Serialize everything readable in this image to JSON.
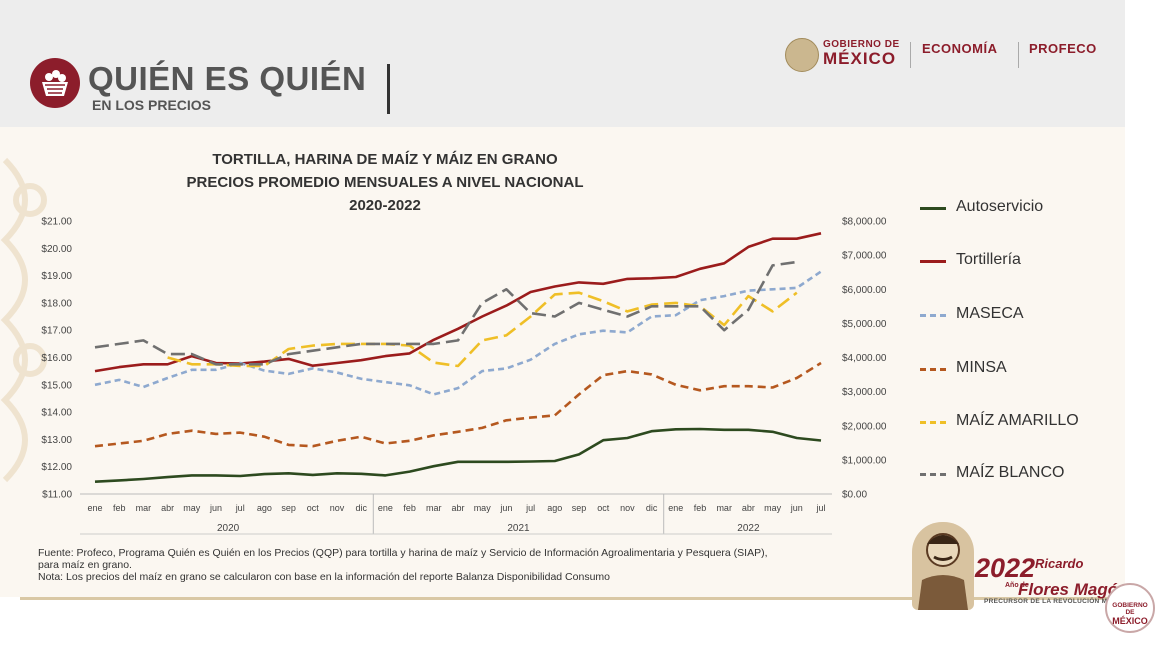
{
  "header": {
    "brand_title": "QUIÉN ES QUIÉN",
    "brand_subtitle": "EN LOS PRECIOS",
    "gov_line1": "GOBIERNO DE",
    "gov_line2": "MÉXICO",
    "ministry": "ECONOMÍA",
    "agency": "PROFECO"
  },
  "chart_data": {
    "type": "line",
    "title": [
      "TORTILLA, HARINA DE MAÍZ Y MÁIZ EN GRANO",
      "PRECIOS PROMEDIO MENSUALES A NIVEL NACIONAL",
      "2020-2022"
    ],
    "categories": [
      "ene",
      "feb",
      "mar",
      "abr",
      "may",
      "jun",
      "jul",
      "ago",
      "sep",
      "oct",
      "nov",
      "dic",
      "ene",
      "feb",
      "mar",
      "abr",
      "may",
      "jun",
      "jul",
      "ago",
      "sep",
      "oct",
      "nov",
      "dic",
      "ene",
      "feb",
      "mar",
      "abr",
      "may",
      "jun",
      "jul"
    ],
    "year_groups": [
      {
        "label": "2020",
        "months": 12
      },
      {
        "label": "2021",
        "months": 12
      },
      {
        "label": "2022",
        "months": 7
      }
    ],
    "y_left": {
      "min": 11,
      "max": 21,
      "step": 1,
      "ticks": [
        "$11.00",
        "$12.00",
        "$13.00",
        "$14.00",
        "$15.00",
        "$16.00",
        "$17.00",
        "$18.00",
        "$19.00",
        "$20.00",
        "$21.00"
      ]
    },
    "y_right": {
      "min": 0,
      "max": 8000,
      "step": 1000,
      "ticks": [
        "$0.00",
        "$1,000.00",
        "$2,000.00",
        "$3,000.00",
        "$4,000.00",
        "$5,000.00",
        "$6,000.00",
        "$7,000.00",
        "$8,000.00"
      ]
    },
    "series": [
      {
        "name": "Autoservicio",
        "axis": "left",
        "color": "#2d4a1f",
        "dash": "",
        "values": [
          11.45,
          11.5,
          11.55,
          11.62,
          11.68,
          11.68,
          11.66,
          11.73,
          11.76,
          11.7,
          11.76,
          11.74,
          11.68,
          11.82,
          12.02,
          12.18,
          12.18,
          12.18,
          12.19,
          12.21,
          12.45,
          12.97,
          13.05,
          13.3,
          13.37,
          13.38,
          13.35,
          13.35,
          13.28,
          13.05,
          12.96
        ]
      },
      {
        "name": "Tortillería",
        "axis": "left",
        "color": "#9b1c1c",
        "dash": "",
        "values": [
          15.5,
          15.65,
          15.75,
          15.75,
          16.05,
          15.8,
          15.78,
          15.85,
          15.95,
          15.7,
          15.8,
          15.9,
          16.05,
          16.15,
          16.65,
          17.05,
          17.5,
          17.9,
          18.4,
          18.6,
          18.75,
          18.7,
          18.88,
          18.9,
          18.95,
          19.25,
          19.45,
          20.05,
          20.35,
          20.35,
          20.55
        ]
      },
      {
        "name": "MASECA",
        "axis": "left",
        "color": "#8ea9cf",
        "dash": "6,4",
        "values": [
          15.0,
          15.18,
          14.92,
          15.25,
          15.55,
          15.55,
          15.8,
          15.52,
          15.4,
          15.6,
          15.45,
          15.22,
          15.1,
          14.98,
          14.65,
          14.88,
          15.5,
          15.6,
          15.92,
          16.5,
          16.85,
          16.98,
          16.92,
          17.5,
          17.55,
          18.1,
          18.25,
          18.45,
          18.5,
          18.55,
          19.15
        ]
      },
      {
        "name": "MINSA",
        "axis": "left",
        "color": "#b5581f",
        "dash": "8,5",
        "values": [
          12.75,
          12.85,
          12.95,
          13.2,
          13.32,
          13.2,
          13.25,
          13.1,
          12.8,
          12.75,
          12.95,
          13.1,
          12.85,
          12.95,
          13.15,
          13.28,
          13.42,
          13.7,
          13.8,
          13.88,
          14.65,
          15.35,
          15.5,
          15.38,
          15.0,
          14.8,
          14.95,
          14.95,
          14.9,
          15.25,
          15.8
        ]
      },
      {
        "name": "MAÍZ AMARILLO",
        "axis": "right",
        "color": "#efbf27",
        "dash": "14,6",
        "values": [
          null,
          null,
          null,
          4000,
          3800,
          3800,
          3750,
          3750,
          4250,
          4350,
          4400,
          4400,
          4400,
          4350,
          3850,
          3750,
          4500,
          4650,
          5200,
          5850,
          5900,
          5650,
          5350,
          5550,
          5600,
          5500,
          4950,
          5800,
          5350,
          5900,
          null
        ]
      },
      {
        "name": "MAÍZ BLANCO",
        "axis": "right",
        "color": "#707070",
        "dash": "14,6",
        "values": [
          4300,
          4400,
          4500,
          4100,
          4100,
          3800,
          3800,
          3800,
          4100,
          4200,
          4300,
          4400,
          4400,
          4400,
          4400,
          4500,
          5600,
          6000,
          5300,
          5200,
          5600,
          5400,
          5200,
          5500,
          5500,
          5500,
          4800,
          5400,
          6700,
          6800,
          null
        ]
      }
    ]
  },
  "source": {
    "line1": "Fuente: Profeco, Programa Quién es Quién en los Precios (QQP) para tortilla y harina de maíz y Servicio de Información Agroalimentaria y Pesquera (SIAP),",
    "line2": "para maíz en grano.",
    "line3": "Nota: Los precios del maíz en grano se calcularon con base en la información del reporte Balanza Disponibilidad Consumo"
  },
  "footer": {
    "year": "2022",
    "year_prefix": "Año de",
    "honoree_first": "Ricardo",
    "honoree_last": "Flores Magón",
    "honoree_caption": "PRECURSOR DE LA REVOLUCIÓN MEXICANA",
    "badge_line1": "GOBIERNO DE",
    "badge_line2": "MÉXICO"
  }
}
